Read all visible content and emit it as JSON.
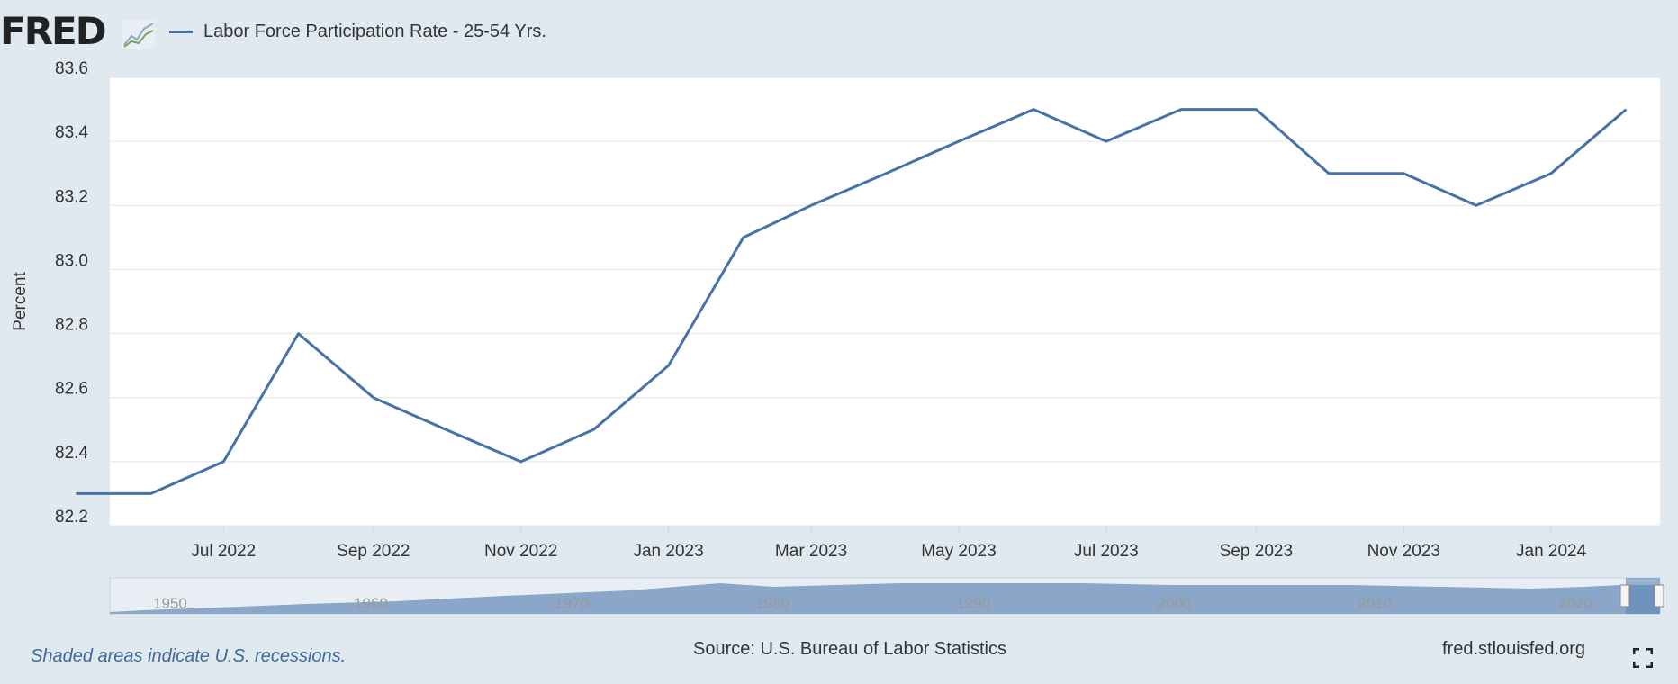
{
  "header": {
    "logo_text": "FRED",
    "legend_label": "Labor Force Participation Rate - 25-54 Yrs.",
    "series_color": "#4572a7"
  },
  "chart_data": {
    "type": "line",
    "title": "Labor Force Participation Rate - 25-54 Yrs.",
    "xlabel": "",
    "ylabel": "Percent",
    "ylim": [
      82.2,
      83.6
    ],
    "yticks": [
      "82.2",
      "82.4",
      "82.6",
      "82.8",
      "83.0",
      "83.2",
      "83.4",
      "83.6"
    ],
    "xticks": [
      "Jul 2022",
      "Sep 2022",
      "Nov 2022",
      "Jan 2023",
      "Mar 2023",
      "May 2023",
      "Jul 2023",
      "Sep 2023",
      "Nov 2023",
      "Jan 2024"
    ],
    "series": [
      {
        "name": "Labor Force Participation Rate - 25-54 Yrs.",
        "x": [
          "2022-05",
          "2022-06",
          "2022-07",
          "2022-08",
          "2022-09",
          "2022-10",
          "2022-11",
          "2022-12",
          "2023-01",
          "2023-02",
          "2023-03",
          "2023-04",
          "2023-05",
          "2023-06",
          "2023-07",
          "2023-08",
          "2023-09",
          "2023-10",
          "2023-11",
          "2023-12",
          "2024-01",
          "2024-02"
        ],
        "values": [
          82.3,
          82.3,
          82.4,
          82.8,
          82.6,
          82.5,
          82.4,
          82.5,
          82.7,
          83.1,
          83.2,
          83.3,
          83.4,
          83.5,
          83.4,
          83.5,
          83.5,
          83.3,
          83.3,
          83.2,
          83.3,
          83.5
        ]
      }
    ],
    "navigator_ticks": [
      "1950",
      "1960",
      "1970",
      "1980",
      "1990",
      "2000",
      "2010",
      "2020"
    ]
  },
  "footer": {
    "recession_note": "Shaded areas indicate U.S. recessions.",
    "source": "Source: U.S. Bureau of Labor Statistics",
    "site": "fred.stlouisfed.org"
  },
  "icons": {
    "chart_icon": "line-chart-icon",
    "fullscreen_icon": "fullscreen-icon"
  }
}
